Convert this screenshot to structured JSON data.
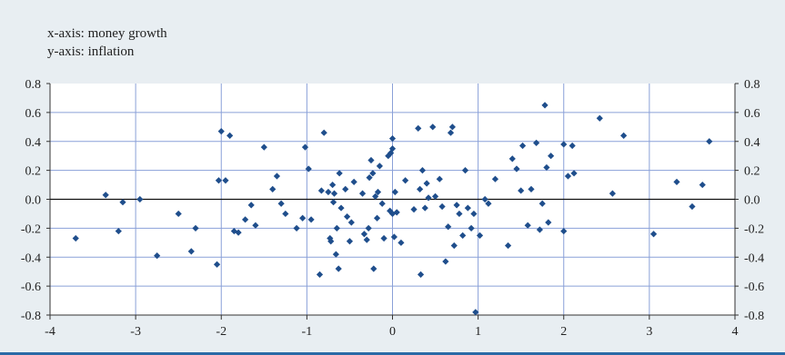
{
  "chart_data": {
    "type": "scatter",
    "annotations": [
      "x-axis: money growth",
      "y-axis: inflation"
    ],
    "xlim": [
      -4,
      4
    ],
    "ylim": [
      -0.8,
      0.8
    ],
    "x_ticks": [
      "-4",
      "-3",
      "-2",
      "-1",
      "0",
      "1",
      "2",
      "3",
      "4"
    ],
    "y_ticks": [
      "0.8",
      "0.6",
      "0.4",
      "0.2",
      "0.0",
      "-0.2",
      "-0.4",
      "-0.6",
      "-0.8"
    ],
    "grid": true,
    "marker_color": "#1f4e8c",
    "grid_color": "#8aa0d8",
    "points": [
      [
        -3.7,
        -0.27
      ],
      [
        -3.35,
        0.03
      ],
      [
        -3.2,
        -0.22
      ],
      [
        -3.15,
        -0.02
      ],
      [
        -2.95,
        0.0
      ],
      [
        -2.75,
        -0.39
      ],
      [
        -2.5,
        -0.1
      ],
      [
        -2.35,
        -0.36
      ],
      [
        -2.3,
        -0.2
      ],
      [
        -2.05,
        -0.45
      ],
      [
        -2.03,
        0.13
      ],
      [
        -2.0,
        0.47
      ],
      [
        -1.95,
        0.13
      ],
      [
        -1.9,
        0.44
      ],
      [
        -1.85,
        -0.22
      ],
      [
        -1.8,
        -0.23
      ],
      [
        -1.72,
        -0.14
      ],
      [
        -1.65,
        -0.04
      ],
      [
        -1.6,
        -0.18
      ],
      [
        -1.5,
        0.36
      ],
      [
        -1.4,
        0.07
      ],
      [
        -1.35,
        0.16
      ],
      [
        -1.3,
        -0.03
      ],
      [
        -1.25,
        -0.1
      ],
      [
        -1.12,
        -0.2
      ],
      [
        -1.05,
        -0.13
      ],
      [
        -1.02,
        0.36
      ],
      [
        -0.98,
        0.21
      ],
      [
        -0.95,
        -0.14
      ],
      [
        -0.85,
        -0.52
      ],
      [
        -0.83,
        0.06
      ],
      [
        -0.8,
        0.46
      ],
      [
        -0.75,
        0.05
      ],
      [
        -0.73,
        -0.27
      ],
      [
        -0.72,
        -0.29
      ],
      [
        -0.7,
        0.1
      ],
      [
        -0.69,
        -0.02
      ],
      [
        -0.68,
        0.04
      ],
      [
        -0.66,
        -0.38
      ],
      [
        -0.65,
        -0.2
      ],
      [
        -0.63,
        -0.48
      ],
      [
        -0.62,
        0.18
      ],
      [
        -0.6,
        -0.06
      ],
      [
        -0.55,
        0.07
      ],
      [
        -0.53,
        -0.12
      ],
      [
        -0.5,
        -0.29
      ],
      [
        -0.48,
        -0.16
      ],
      [
        -0.45,
        0.12
      ],
      [
        -0.35,
        0.04
      ],
      [
        -0.33,
        -0.24
      ],
      [
        -0.3,
        -0.28
      ],
      [
        -0.28,
        -0.2
      ],
      [
        -0.27,
        0.15
      ],
      [
        -0.25,
        0.27
      ],
      [
        -0.23,
        0.18
      ],
      [
        -0.22,
        -0.48
      ],
      [
        -0.2,
        0.02
      ],
      [
        -0.18,
        -0.13
      ],
      [
        -0.17,
        0.05
      ],
      [
        -0.15,
        0.23
      ],
      [
        -0.12,
        -0.03
      ],
      [
        -0.1,
        -0.27
      ],
      [
        -0.05,
        0.3
      ],
      [
        -0.03,
        -0.08
      ],
      [
        -0.02,
        0.32
      ],
      [
        0.0,
        0.42
      ],
      [
        0.0,
        0.35
      ],
      [
        0.0,
        -0.1
      ],
      [
        0.02,
        -0.26
      ],
      [
        0.03,
        0.05
      ],
      [
        0.05,
        -0.09
      ],
      [
        0.1,
        -0.3
      ],
      [
        0.15,
        0.13
      ],
      [
        0.25,
        -0.07
      ],
      [
        0.3,
        0.49
      ],
      [
        0.32,
        0.07
      ],
      [
        0.33,
        -0.52
      ],
      [
        0.35,
        0.2
      ],
      [
        0.38,
        -0.06
      ],
      [
        0.4,
        0.11
      ],
      [
        0.42,
        0.01
      ],
      [
        0.47,
        0.5
      ],
      [
        0.5,
        0.02
      ],
      [
        0.55,
        0.14
      ],
      [
        0.58,
        -0.05
      ],
      [
        0.62,
        -0.43
      ],
      [
        0.65,
        -0.19
      ],
      [
        0.68,
        0.46
      ],
      [
        0.7,
        0.5
      ],
      [
        0.72,
        -0.32
      ],
      [
        0.75,
        -0.04
      ],
      [
        0.78,
        -0.1
      ],
      [
        0.82,
        -0.25
      ],
      [
        0.85,
        0.2
      ],
      [
        0.88,
        -0.06
      ],
      [
        0.92,
        -0.2
      ],
      [
        0.95,
        -0.1
      ],
      [
        0.97,
        -0.78
      ],
      [
        1.02,
        -0.25
      ],
      [
        1.08,
        0.0
      ],
      [
        1.12,
        -0.03
      ],
      [
        1.2,
        0.14
      ],
      [
        1.35,
        -0.32
      ],
      [
        1.4,
        0.28
      ],
      [
        1.45,
        0.21
      ],
      [
        1.5,
        0.06
      ],
      [
        1.52,
        0.37
      ],
      [
        1.58,
        -0.18
      ],
      [
        1.62,
        0.07
      ],
      [
        1.68,
        0.39
      ],
      [
        1.72,
        -0.21
      ],
      [
        1.75,
        -0.03
      ],
      [
        1.78,
        0.65
      ],
      [
        1.8,
        0.22
      ],
      [
        1.82,
        -0.16
      ],
      [
        1.85,
        0.3
      ],
      [
        2.0,
        0.38
      ],
      [
        2.0,
        -0.22
      ],
      [
        2.05,
        0.16
      ],
      [
        2.1,
        0.37
      ],
      [
        2.12,
        0.18
      ],
      [
        2.42,
        0.56
      ],
      [
        2.57,
        0.04
      ],
      [
        2.7,
        0.44
      ],
      [
        3.05,
        -0.24
      ],
      [
        3.32,
        0.12
      ],
      [
        3.5,
        -0.05
      ],
      [
        3.62,
        0.1
      ],
      [
        3.7,
        0.4
      ]
    ]
  }
}
